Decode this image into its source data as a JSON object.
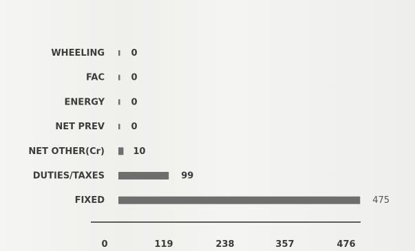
{
  "chart_data": {
    "type": "bar",
    "orientation": "horizontal",
    "categories": [
      "WHEELING",
      "FAC",
      "ENERGY",
      "NET PREV",
      "NET OTHER(Cr)",
      "DUTIES/TAXES",
      "FIXED"
    ],
    "values": [
      0,
      0,
      0,
      0,
      10,
      99,
      475
    ],
    "value_labels": [
      "0",
      "0",
      "0",
      "0",
      "10",
      "99",
      "475"
    ],
    "xlim": [
      0,
      476
    ],
    "xticks": [
      "0",
      "119",
      "238",
      "357",
      "476"
    ],
    "bar_color": "#6e6e6e",
    "grid": false,
    "legend": "none"
  }
}
